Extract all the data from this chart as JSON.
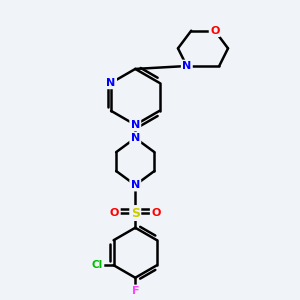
{
  "background_color": "#f0f4f8",
  "bond_color": "#000000",
  "atom_colors": {
    "N": "#0000ff",
    "O": "#ff0000",
    "S": "#cccc00",
    "Cl": "#00bb00",
    "F": "#ff44ff",
    "C": "#000000"
  },
  "bond_lw": 1.8,
  "font_size": 8
}
